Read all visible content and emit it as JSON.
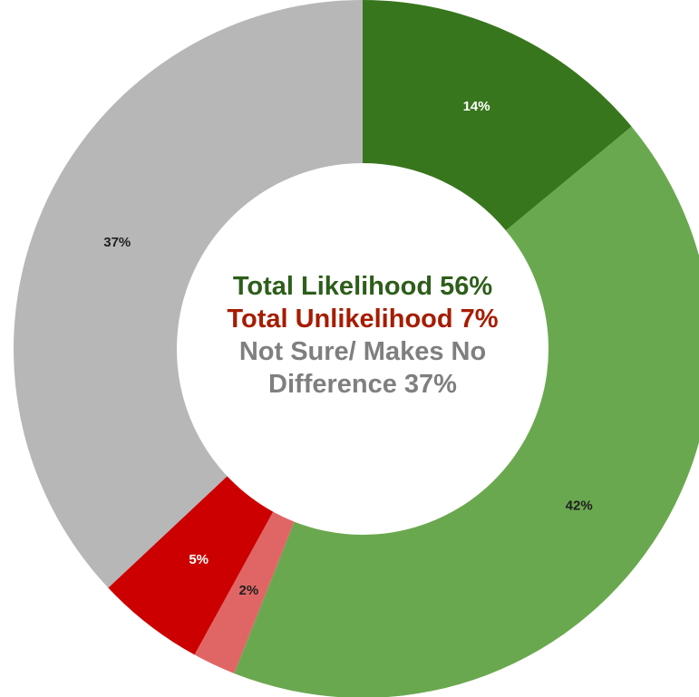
{
  "chart_data": {
    "type": "pie",
    "variant": "donut",
    "slices": [
      {
        "value": 14,
        "label": "14%",
        "color": "#38761d",
        "label_color": "#ffffff"
      },
      {
        "value": 42,
        "label": "42%",
        "color": "#6aa84f",
        "label_color": "#1f1f1f"
      },
      {
        "value": 2,
        "label": "2%",
        "color": "#e06666",
        "label_color": "#1f1f1f"
      },
      {
        "value": 5,
        "label": "5%",
        "color": "#cc0000",
        "label_color": "#ffffff"
      },
      {
        "value": 37,
        "label": "37%",
        "color": "#b7b7b7",
        "label_color": "#1f1f1f"
      }
    ],
    "center_lines": [
      {
        "text": "Total Likelihood 56%",
        "color": "#2d5e1a"
      },
      {
        "text": "Total Unlikelihood 7%",
        "color": "#a61c00"
      },
      {
        "text": "Not Sure/ Makes No",
        "color": "#7f7f7f"
      },
      {
        "text": "Difference 37%",
        "color": "#7f7f7f"
      }
    ]
  }
}
